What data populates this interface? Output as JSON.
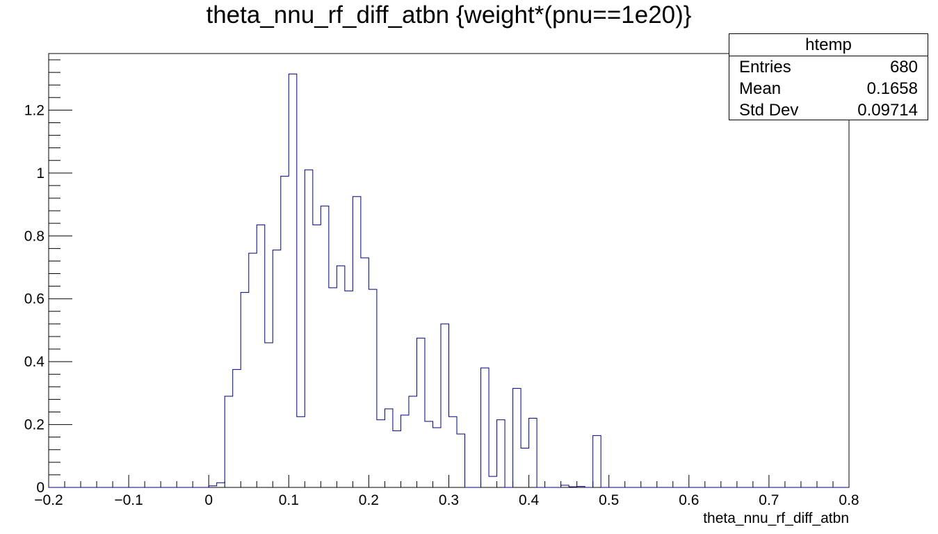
{
  "title": "theta_nnu_rf_diff_atbn {weight*(pnu==1e20)}",
  "stats": {
    "name": "htemp",
    "rows": [
      {
        "label": "Entries",
        "value": "680"
      },
      {
        "label": "Mean",
        "value": "0.1658"
      },
      {
        "label": "Std Dev",
        "value": "0.09714"
      }
    ]
  },
  "colors": {
    "line": "#000080",
    "axis": "#000000",
    "background": "#ffffff"
  },
  "chart_data": {
    "type": "histogram",
    "title": "theta_nnu_rf_diff_atbn {weight*(pnu==1e20)}",
    "xlabel": "theta_nnu_rf_diff_atbn",
    "ylabel": "",
    "xlim": [
      -0.2,
      0.8
    ],
    "ylim": [
      0,
      1.38
    ],
    "grid": false,
    "x_ticks": [
      "−0.2",
      "−0.1",
      "0",
      "0.1",
      "0.2",
      "0.3",
      "0.4",
      "0.5",
      "0.6",
      "0.7",
      "0.8"
    ],
    "y_ticks": [
      "0",
      "0.2",
      "0.4",
      "0.6",
      "0.8",
      "1",
      "1.2"
    ],
    "bins": {
      "start": -0.2,
      "width": 0.01,
      "count": 100
    },
    "values": [
      0,
      0,
      0,
      0,
      0,
      0,
      0,
      0,
      0,
      0,
      0,
      0,
      0,
      0,
      0,
      0,
      0,
      0,
      0,
      0,
      0.005,
      0.015,
      0.29,
      0.375,
      0.62,
      0.745,
      0.835,
      0.46,
      0.755,
      0.99,
      1.315,
      0.225,
      1.01,
      0.835,
      0.895,
      0.635,
      0.705,
      0.625,
      0.925,
      0.73,
      0.63,
      0.215,
      0.25,
      0.18,
      0.23,
      0.29,
      0.475,
      0.21,
      0.19,
      0.52,
      0.225,
      0.17,
      0,
      0,
      0.38,
      0.035,
      0.215,
      0,
      0.315,
      0.125,
      0.22,
      0,
      0,
      0,
      0.007,
      0.002,
      0.003,
      0,
      0.165,
      0,
      0,
      0,
      0,
      0,
      0,
      0,
      0,
      0,
      0,
      0,
      0,
      0,
      0,
      0,
      0,
      0,
      0,
      0,
      0,
      0,
      0,
      0,
      0,
      0,
      0,
      0,
      0,
      0,
      0,
      0
    ]
  }
}
